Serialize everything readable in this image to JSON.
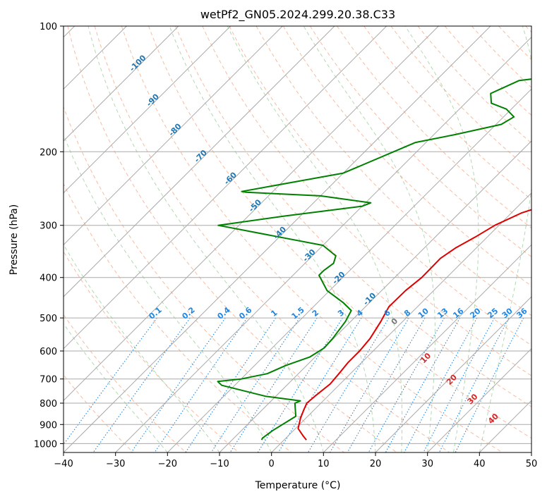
{
  "chart_data": {
    "type": "line",
    "title": "wetPf2_GN05.2024.299.20.38.C33",
    "xlabel": "Temperature (°C)",
    "ylabel": "Pressure (hPa)",
    "xlim": [
      -40,
      50
    ],
    "ylim": [
      1050,
      100
    ],
    "y_scale": "log",
    "skew": "skew-T diagram",
    "x_ticks": [
      -40,
      -30,
      -20,
      -10,
      0,
      10,
      20,
      30,
      40,
      50
    ],
    "y_ticks": [
      100,
      200,
      300,
      400,
      500,
      600,
      700,
      800,
      900,
      1000
    ],
    "grid": true,
    "dry_adiabats_color": "#f4a582",
    "moist_adiabats_color": "#7fbf7f",
    "mixing_ratio_color": "#1e88e5",
    "isotherm_label_color": "#1f77b4",
    "series": [
      {
        "color": "#e00000",
        "points": [
          [
            4.3,
            980
          ],
          [
            3.0,
            960
          ],
          [
            0.5,
            920
          ],
          [
            -1.0,
            870
          ],
          [
            -2.0,
            830
          ],
          [
            -2.7,
            800
          ],
          [
            -2.5,
            770
          ],
          [
            -1.9,
            720
          ],
          [
            -2.2,
            680
          ],
          [
            -2.6,
            640
          ],
          [
            -2.6,
            600
          ],
          [
            -3.0,
            560
          ],
          [
            -4.2,
            510
          ],
          [
            -5.5,
            470
          ],
          [
            -5.4,
            430
          ],
          [
            -4.8,
            400
          ],
          [
            -4.9,
            360
          ],
          [
            -4.0,
            340
          ],
          [
            -2.3,
            320
          ],
          [
            -0.8,
            300
          ],
          [
            2.0,
            280
          ],
          [
            6.0,
            265
          ],
          [
            12.0,
            245
          ],
          [
            18.0,
            225
          ],
          [
            22.0,
            205
          ],
          [
            25.0,
            185
          ],
          [
            27.0,
            170
          ],
          [
            30.0,
            155
          ],
          [
            33.0,
            143
          ],
          [
            37.0,
            130
          ],
          [
            42.0,
            117
          ],
          [
            47.0,
            105
          ],
          [
            50.0,
            100
          ]
        ]
      },
      {
        "color": "#008000",
        "points": [
          [
            -4.3,
            980
          ],
          [
            -4.5,
            970
          ],
          [
            -4.0,
            930
          ],
          [
            -2.3,
            860
          ],
          [
            -5.0,
            800
          ],
          [
            -4.4,
            790
          ],
          [
            -12.0,
            770
          ],
          [
            -22.5,
            725
          ],
          [
            -24.0,
            710
          ],
          [
            -20.0,
            700
          ],
          [
            -16.0,
            680
          ],
          [
            -14.0,
            650
          ],
          [
            -11.0,
            620
          ],
          [
            -10.0,
            590
          ],
          [
            -10.2,
            560
          ],
          [
            -11.0,
            510
          ],
          [
            -12.0,
            480
          ],
          [
            -15.0,
            460
          ],
          [
            -20.5,
            430
          ],
          [
            -25.0,
            395
          ],
          [
            -25.0,
            385
          ],
          [
            -24.5,
            370
          ],
          [
            -25.5,
            355
          ],
          [
            -30.0,
            335
          ],
          [
            -40.0,
            320
          ],
          [
            -54.0,
            300
          ],
          [
            -43.0,
            285
          ],
          [
            -30.0,
            270
          ],
          [
            -29.0,
            265
          ],
          [
            -40.0,
            255
          ],
          [
            -55.0,
            250
          ],
          [
            -56.0,
            249
          ],
          [
            -40.0,
            225
          ],
          [
            -32.0,
            190
          ],
          [
            -26.0,
            182
          ],
          [
            -19.0,
            172
          ],
          [
            -18.0,
            165
          ],
          [
            -21.0,
            158
          ],
          [
            -25.0,
            153
          ],
          [
            -27.0,
            145
          ],
          [
            -24.0,
            135
          ],
          [
            -14.0,
            130
          ],
          [
            -9.5,
            122
          ],
          [
            -6.5,
            115
          ],
          [
            -3.5,
            108
          ],
          [
            -1.5,
            100
          ]
        ]
      }
    ],
    "isotherm_labels": [
      "-100",
      "-90",
      "-80",
      "-70",
      "-60",
      "-50",
      "-40",
      "-30",
      "-20",
      "-10"
    ],
    "mixing_ratio_labels": [
      "0.1",
      "0.2",
      "0.4",
      "0.6",
      "1",
      "1.5",
      "2",
      "3",
      "4",
      "6",
      "8",
      "10",
      "13",
      "16",
      "20",
      "25",
      "30",
      "36"
    ],
    "moist_adiabat_labels": [
      {
        "text": "0",
        "color": "#777777"
      },
      {
        "text": "10",
        "color": "#d62728"
      },
      {
        "text": "20",
        "color": "#d62728"
      },
      {
        "text": "30",
        "color": "#d62728"
      },
      {
        "text": "40",
        "color": "#d62728"
      }
    ]
  }
}
